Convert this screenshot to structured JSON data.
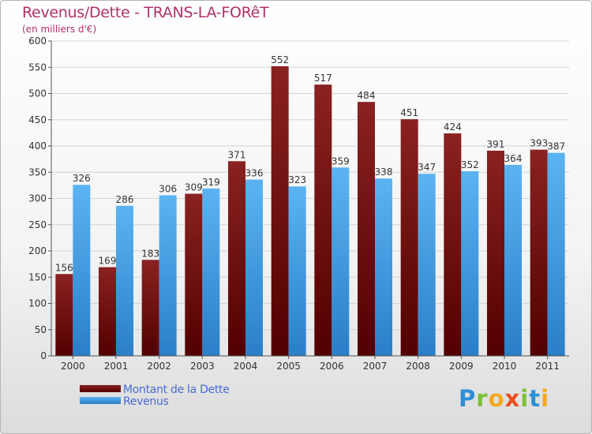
{
  "header": {
    "title": "Revenus/Dette - TRANS-LA-FORêT",
    "subtitle": "(en milliers d'€)"
  },
  "legend": {
    "items": [
      {
        "label": "Montant de la Dette",
        "color": "#6e1010"
      },
      {
        "label": "Revenus",
        "color": "#4aa3e8"
      }
    ]
  },
  "brand": {
    "text": "Proxiti",
    "letters": [
      {
        "ch": "P",
        "color": "#2e8fd6"
      },
      {
        "ch": "r",
        "color": "#7cc13a"
      },
      {
        "ch": "o",
        "color": "#f4a81d"
      },
      {
        "ch": "x",
        "color": "#e94e1b"
      },
      {
        "ch": "i",
        "color": "#7cc13a"
      },
      {
        "ch": "t",
        "color": "#2e8fd6"
      },
      {
        "ch": "i",
        "color": "#f4a81d"
      }
    ]
  },
  "chart_data": {
    "type": "bar",
    "title": "Revenus/Dette - TRANS-LA-FORêT",
    "subtitle": "(en milliers d'€)",
    "xlabel": "",
    "ylabel": "",
    "ylim": [
      0,
      600
    ],
    "yticks": [
      0,
      50,
      100,
      150,
      200,
      250,
      300,
      350,
      400,
      450,
      500,
      550,
      600
    ],
    "grid": true,
    "legend_position": "bottom-left",
    "categories": [
      "2000",
      "2001",
      "2002",
      "2003",
      "2004",
      "2005",
      "2006",
      "2007",
      "2008",
      "2009",
      "2010",
      "2011"
    ],
    "series": [
      {
        "name": "Montant de la Dette",
        "color": "#6e1010",
        "values": [
          156,
          169,
          183,
          309,
          371,
          552,
          517,
          484,
          451,
          424,
          391,
          393
        ]
      },
      {
        "name": "Revenus",
        "color": "#4aa3e8",
        "values": [
          326,
          286,
          306,
          319,
          336,
          323,
          359,
          338,
          347,
          352,
          364,
          387
        ]
      }
    ]
  }
}
